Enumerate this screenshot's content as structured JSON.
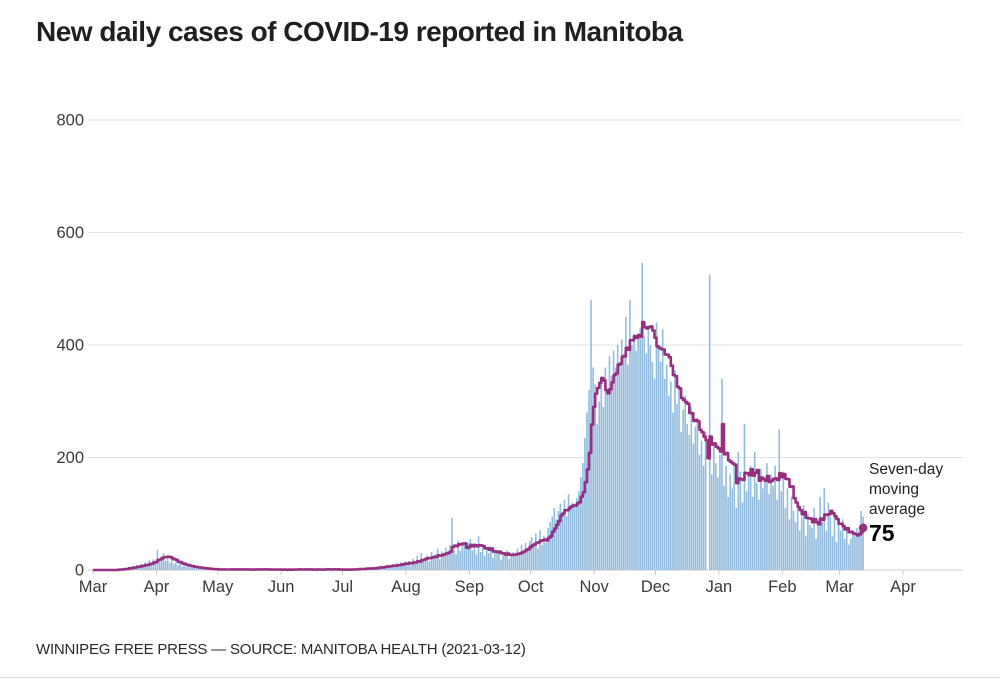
{
  "footer": {
    "credit": "WINNIPEG FREE PRESS — SOURCE: MANITOBA HEALTH (2021-03-12)"
  },
  "annotation": {
    "line1": "Seven-day",
    "line2": "moving",
    "line3": "average",
    "value": "75"
  },
  "colors": {
    "bar": "#93bbde",
    "line": "#962e82",
    "grid": "#e3e3e3",
    "axis": "#cfcfcf",
    "tick": "#c8c8c8"
  },
  "chart_data": {
    "type": "bar",
    "title": "New daily cases of COVID-19 reported in Manitoba",
    "xlabel": "",
    "ylabel": "",
    "ylim": [
      0,
      800
    ],
    "y_ticks": [
      0,
      200,
      400,
      600,
      800
    ],
    "x_tick_labels": [
      "Mar",
      "Apr",
      "May",
      "Jun",
      "Jul",
      "Aug",
      "Sep",
      "Oct",
      "Nov",
      "Dec",
      "Jan",
      "Feb",
      "Mar",
      "Apr"
    ],
    "grid": "horizontal",
    "start_date": "2020-03-01",
    "end_date": "2021-03-12",
    "series": [
      {
        "name": "New daily cases",
        "type": "bar"
      },
      {
        "name": "Seven-day moving average",
        "type": "step-line",
        "derived": "trailing 7-day mean of daily values",
        "end_value": 75
      }
    ],
    "daily_values": [
      0,
      0,
      0,
      0,
      0,
      0,
      0,
      0,
      0,
      0,
      0,
      1,
      3,
      2,
      1,
      4,
      3,
      6,
      4,
      8,
      6,
      9,
      5,
      11,
      9,
      14,
      10,
      17,
      13,
      19,
      16,
      36,
      20,
      25,
      30,
      16,
      22,
      13,
      18,
      11,
      14,
      8,
      12,
      6,
      9,
      5,
      7,
      4,
      6,
      3,
      5,
      2,
      4,
      1,
      3,
      2,
      1,
      2,
      0,
      1,
      1,
      1,
      0,
      2,
      1,
      0,
      1,
      3,
      0,
      1,
      2,
      0,
      1,
      0,
      2,
      1,
      0,
      1,
      0,
      3,
      1,
      0,
      2,
      0,
      1,
      1,
      0,
      2,
      0,
      1,
      0,
      1,
      0,
      1,
      0,
      2,
      0,
      1,
      1,
      0,
      3,
      1,
      0,
      1,
      2,
      0,
      1,
      0,
      1,
      2,
      0,
      1,
      0,
      4,
      1,
      0,
      2,
      1,
      0,
      1,
      0,
      1,
      0,
      1,
      2,
      0,
      1,
      3,
      1,
      2,
      4,
      2,
      1,
      3,
      5,
      2,
      4,
      3,
      6,
      4,
      8,
      5,
      7,
      9,
      6,
      8,
      10,
      7,
      12,
      9,
      14,
      11,
      15,
      10,
      16,
      8,
      20,
      14,
      25,
      12,
      30,
      18,
      22,
      26,
      15,
      32,
      21,
      28,
      38,
      19,
      33,
      26,
      40,
      30,
      44,
      93,
      36,
      28,
      52,
      34,
      42,
      46,
      35,
      48,
      55,
      35,
      48,
      28,
      60,
      32,
      40,
      25,
      38,
      30,
      42,
      22,
      35,
      28,
      33,
      18,
      30,
      25,
      35,
      20,
      28,
      32,
      24,
      38,
      30,
      45,
      33,
      48,
      40,
      52,
      58,
      42,
      65,
      38,
      70,
      45,
      60,
      48,
      75,
      85,
      95,
      110,
      90,
      105,
      118,
      100,
      125,
      96,
      135,
      110,
      120,
      115,
      128,
      140,
      165,
      190,
      235,
      280,
      320,
      480,
      360,
      330,
      260,
      300,
      340,
      290,
      360,
      320,
      380,
      345,
      390,
      360,
      400,
      370,
      410,
      385,
      450,
      365,
      480,
      400,
      420,
      390,
      420,
      430,
      546,
      415,
      385,
      435,
      400,
      370,
      340,
      440,
      395,
      370,
      428,
      340,
      365,
      310,
      335,
      280,
      355,
      295,
      320,
      245,
      285,
      310,
      260,
      240,
      290,
      225,
      255,
      270,
      205,
      230,
      185,
      245,
      0,
      525,
      170,
      220,
      190,
      165,
      205,
      340,
      150,
      185,
      130,
      170,
      145,
      190,
      110,
      210,
      175,
      120,
      260,
      140,
      165,
      185,
      130,
      210,
      155,
      125,
      180,
      145,
      165,
      190,
      135,
      170,
      150,
      185,
      125,
      250,
      140,
      175,
      110,
      145,
      90,
      130,
      105,
      85,
      120,
      70,
      95,
      115,
      60,
      100,
      80,
      75,
      110,
      55,
      90,
      130,
      85,
      145,
      70,
      120,
      95,
      60,
      95,
      50,
      85,
      70,
      90,
      55,
      75,
      45,
      55,
      65,
      60,
      75,
      70,
      105,
      95
    ]
  }
}
